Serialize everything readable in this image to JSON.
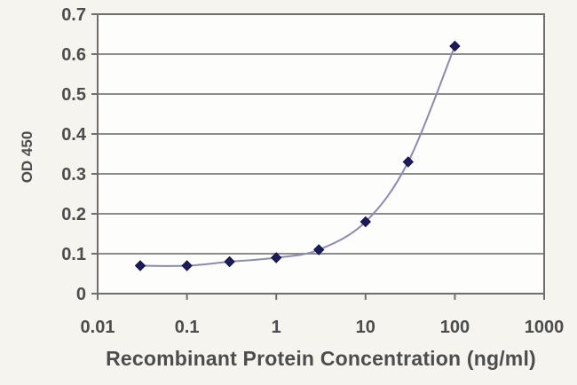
{
  "chart_data": {
    "type": "line",
    "title": "",
    "x_scale": "log",
    "x": [
      0.03,
      0.1,
      0.3,
      1,
      3,
      10,
      30,
      100
    ],
    "series": [
      {
        "name": "OD 450",
        "marker": "diamond",
        "values": [
          0.07,
          0.07,
          0.08,
          0.09,
          0.11,
          0.18,
          0.33,
          0.62
        ]
      }
    ],
    "xlabel": "Recombinant Protein Concentration (ng/ml)",
    "ylabel": "OD 450",
    "xlim": [
      0.01,
      1000
    ],
    "ylim": [
      0,
      0.7
    ],
    "x_tick_labels": [
      "0.01",
      "0.1",
      "1",
      "10",
      "100",
      "1000"
    ],
    "x_tick_values": [
      0.01,
      0.1,
      1,
      10,
      100,
      1000
    ],
    "y_tick_labels": [
      "0",
      "0.1",
      "0.2",
      "0.3",
      "0.4",
      "0.5",
      "0.6",
      "0.7"
    ],
    "y_tick_values": [
      0,
      0.1,
      0.2,
      0.3,
      0.4,
      0.5,
      0.6,
      0.7
    ],
    "grid": "horizontal-only",
    "legend": "none",
    "colors": {
      "line": "#8b8bb2",
      "marker": "#1b1b5e",
      "marker_edge": "#12124a",
      "grid": "#8c8c8c",
      "axis": "#6e6e6e",
      "text": "#4d4d4d",
      "plot_bg": "#fdfdfb",
      "page_bg": "#f5f4ef"
    }
  }
}
